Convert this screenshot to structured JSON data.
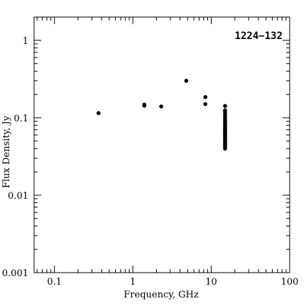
{
  "chart_data": {
    "type": "scatter",
    "title": "",
    "annotation": "1224−132",
    "xlabel": "Frequency, GHz",
    "ylabel": "Flux Density, Jy",
    "xscale": "log",
    "yscale": "log",
    "xlim": [
      0.055,
      100
    ],
    "ylim": [
      0.001,
      2
    ],
    "x_tick_labels": [
      {
        "value": 0.1,
        "label": "0.1"
      },
      {
        "value": 1,
        "label": "1"
      },
      {
        "value": 10,
        "label": "10"
      },
      {
        "value": 100,
        "label": "100"
      }
    ],
    "y_tick_labels": [
      {
        "value": 0.001,
        "label": "0.001"
      },
      {
        "value": 0.01,
        "label": "0.01"
      },
      {
        "value": 0.1,
        "label": "0.1"
      },
      {
        "value": 1,
        "label": "1"
      }
    ],
    "grid": false,
    "legend": "none",
    "marker_color": "#000000",
    "points": [
      {
        "x": 0.365,
        "y": 0.115
      },
      {
        "x": 1.4,
        "y": 0.148
      },
      {
        "x": 1.4,
        "y": 0.143
      },
      {
        "x": 2.3,
        "y": 0.14
      },
      {
        "x": 4.8,
        "y": 0.3
      },
      {
        "x": 8.4,
        "y": 0.185
      },
      {
        "x": 8.4,
        "y": 0.15
      },
      {
        "x": 15,
        "y": 0.142
      },
      {
        "x": 15,
        "y": 0.125
      },
      {
        "x": 15,
        "y": 0.118
      },
      {
        "x": 15,
        "y": 0.11
      },
      {
        "x": 15,
        "y": 0.104
      },
      {
        "x": 15,
        "y": 0.098
      },
      {
        "x": 15,
        "y": 0.093
      },
      {
        "x": 15,
        "y": 0.088
      },
      {
        "x": 15,
        "y": 0.084
      },
      {
        "x": 15,
        "y": 0.08
      },
      {
        "x": 15,
        "y": 0.077
      },
      {
        "x": 15,
        "y": 0.074
      },
      {
        "x": 15,
        "y": 0.071
      },
      {
        "x": 15,
        "y": 0.068
      },
      {
        "x": 15,
        "y": 0.066
      },
      {
        "x": 15,
        "y": 0.064
      },
      {
        "x": 15,
        "y": 0.062
      },
      {
        "x": 15,
        "y": 0.06
      },
      {
        "x": 15,
        "y": 0.058
      },
      {
        "x": 15,
        "y": 0.056
      },
      {
        "x": 15,
        "y": 0.054
      },
      {
        "x": 15,
        "y": 0.052
      },
      {
        "x": 15,
        "y": 0.05
      },
      {
        "x": 15,
        "y": 0.048
      },
      {
        "x": 15,
        "y": 0.046
      },
      {
        "x": 15,
        "y": 0.044
      },
      {
        "x": 15,
        "y": 0.042
      },
      {
        "x": 15,
        "y": 0.04
      }
    ]
  }
}
